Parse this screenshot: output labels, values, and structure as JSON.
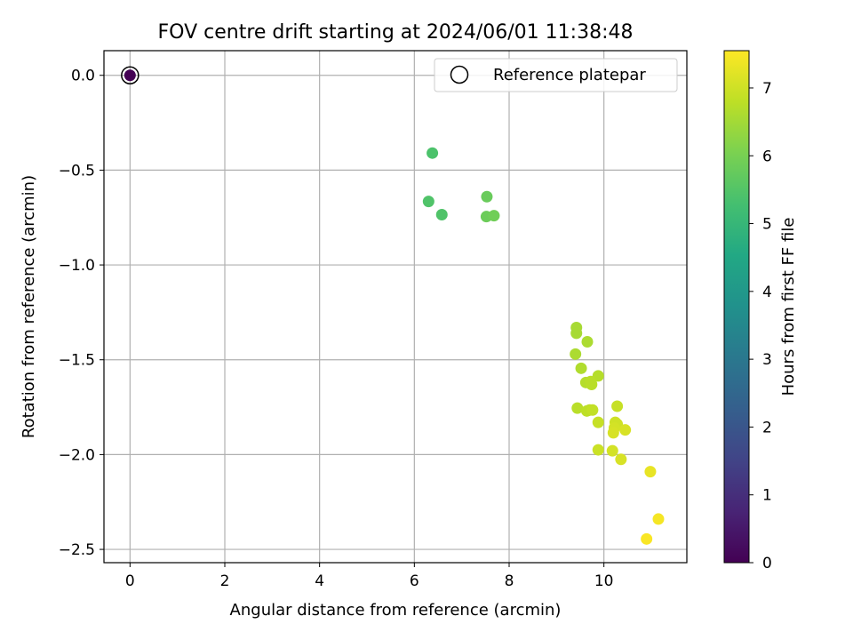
{
  "chart_data": {
    "type": "scatter",
    "title": "FOV centre drift starting at 2024/06/01 11:38:48",
    "xlabel": "Angular distance from reference (arcmin)",
    "ylabel": "Rotation from reference (arcmin)",
    "xlim": [
      -0.55,
      11.75
    ],
    "ylim": [
      -2.57,
      0.13
    ],
    "xticks": [
      0,
      2,
      4,
      6,
      8,
      10
    ],
    "xtick_labels": [
      "0",
      "2",
      "4",
      "6",
      "8",
      "10"
    ],
    "yticks": [
      0.0,
      -0.5,
      -1.0,
      -1.5,
      -2.0,
      -2.5
    ],
    "ytick_labels": [
      "0.0",
      "−0.5",
      "−1.0",
      "−1.5",
      "−2.0",
      "−2.5"
    ],
    "grid": true,
    "legend": {
      "position": "top-right",
      "entries": [
        "Reference platepar"
      ]
    },
    "colorbar": {
      "label": "Hours from first FF file",
      "range": [
        0,
        7.55
      ],
      "ticks": [
        0,
        1,
        2,
        3,
        4,
        5,
        6,
        7
      ],
      "tick_labels": [
        "0",
        "1",
        "2",
        "3",
        "4",
        "5",
        "6",
        "7"
      ],
      "colormap": "viridis"
    },
    "reference": {
      "x": 0,
      "y": 0,
      "c": 0
    },
    "points": [
      {
        "x": 0.0,
        "y": 0.0,
        "c": 0.0
      },
      {
        "x": 6.38,
        "y": -0.41,
        "c": 5.4
      },
      {
        "x": 6.3,
        "y": -0.665,
        "c": 5.45
      },
      {
        "x": 6.58,
        "y": -0.735,
        "c": 5.45
      },
      {
        "x": 7.53,
        "y": -0.64,
        "c": 5.8
      },
      {
        "x": 7.52,
        "y": -0.745,
        "c": 5.85
      },
      {
        "x": 7.68,
        "y": -0.74,
        "c": 5.9
      },
      {
        "x": 9.42,
        "y": -1.33,
        "c": 6.55
      },
      {
        "x": 9.42,
        "y": -1.36,
        "c": 6.55
      },
      {
        "x": 9.65,
        "y": -1.405,
        "c": 6.6
      },
      {
        "x": 9.4,
        "y": -1.47,
        "c": 6.6
      },
      {
        "x": 9.52,
        "y": -1.545,
        "c": 6.65
      },
      {
        "x": 9.88,
        "y": -1.585,
        "c": 6.7
      },
      {
        "x": 9.62,
        "y": -1.62,
        "c": 6.7
      },
      {
        "x": 9.72,
        "y": -1.615,
        "c": 6.75
      },
      {
        "x": 9.74,
        "y": -1.63,
        "c": 6.75
      },
      {
        "x": 10.28,
        "y": -1.745,
        "c": 6.9
      },
      {
        "x": 9.44,
        "y": -1.755,
        "c": 6.75
      },
      {
        "x": 9.64,
        "y": -1.77,
        "c": 6.8
      },
      {
        "x": 9.7,
        "y": -1.765,
        "c": 6.8
      },
      {
        "x": 9.76,
        "y": -1.765,
        "c": 6.85
      },
      {
        "x": 9.88,
        "y": -1.83,
        "c": 6.9
      },
      {
        "x": 10.24,
        "y": -1.83,
        "c": 7.0
      },
      {
        "x": 10.28,
        "y": -1.84,
        "c": 7.0
      },
      {
        "x": 10.22,
        "y": -1.86,
        "c": 7.05
      },
      {
        "x": 10.45,
        "y": -1.87,
        "c": 7.1
      },
      {
        "x": 10.2,
        "y": -1.885,
        "c": 7.1
      },
      {
        "x": 9.88,
        "y": -1.975,
        "c": 6.95
      },
      {
        "x": 10.18,
        "y": -1.98,
        "c": 7.05
      },
      {
        "x": 10.36,
        "y": -2.025,
        "c": 7.1
      },
      {
        "x": 10.98,
        "y": -2.09,
        "c": 7.3
      },
      {
        "x": 11.15,
        "y": -2.34,
        "c": 7.45
      },
      {
        "x": 10.9,
        "y": -2.445,
        "c": 7.5
      }
    ]
  }
}
